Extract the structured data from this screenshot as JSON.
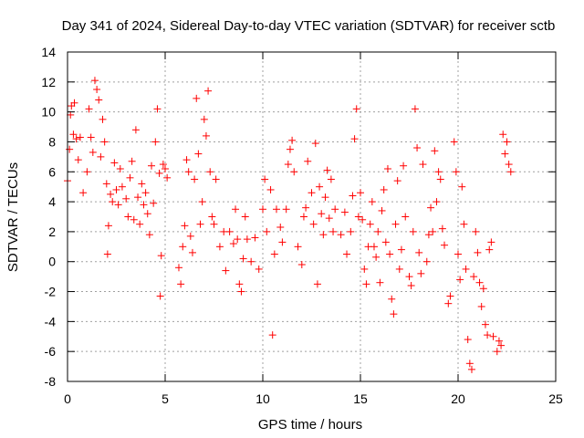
{
  "chart_data": {
    "type": "scatter",
    "title": "Day 341 of 2024, Sidereal Day-to-day VTEC variation (SDTVAR) for receiver sctb",
    "xlabel": "GPS time / hours",
    "ylabel": "SDTVAR / TECUs",
    "xlim": [
      0,
      25
    ],
    "ylim": [
      -8,
      14
    ],
    "xticks": [
      "0",
      "5",
      "10",
      "15",
      "20",
      "25"
    ],
    "yticks": [
      "-8",
      "-6",
      "-4",
      "-2",
      "0",
      "2",
      "4",
      "6",
      "8",
      "10",
      "12",
      "14"
    ],
    "grid": true,
    "marker": "+",
    "marker_color": "#ff0000",
    "series": [
      {
        "name": "SDTVAR",
        "points": [
          [
            0.0,
            5.4
          ],
          [
            0.1,
            7.5
          ],
          [
            0.15,
            9.8
          ],
          [
            0.2,
            10.4
          ],
          [
            0.3,
            8.5
          ],
          [
            0.35,
            10.6
          ],
          [
            0.45,
            8.2
          ],
          [
            0.55,
            6.8
          ],
          [
            0.65,
            8.3
          ],
          [
            0.8,
            4.6
          ],
          [
            1.0,
            6.0
          ],
          [
            1.1,
            10.2
          ],
          [
            1.2,
            8.3
          ],
          [
            1.3,
            7.3
          ],
          [
            1.4,
            12.1
          ],
          [
            1.5,
            11.5
          ],
          [
            1.6,
            10.8
          ],
          [
            1.7,
            7.0
          ],
          [
            1.8,
            9.5
          ],
          [
            1.9,
            8.0
          ],
          [
            2.0,
            5.2
          ],
          [
            2.05,
            0.5
          ],
          [
            2.1,
            2.4
          ],
          [
            2.2,
            4.5
          ],
          [
            2.3,
            4.0
          ],
          [
            2.4,
            6.6
          ],
          [
            2.5,
            4.8
          ],
          [
            2.6,
            3.8
          ],
          [
            2.7,
            6.2
          ],
          [
            2.8,
            5.0
          ],
          [
            3.0,
            4.2
          ],
          [
            3.1,
            3.0
          ],
          [
            3.2,
            5.6
          ],
          [
            3.3,
            6.7
          ],
          [
            3.4,
            2.8
          ],
          [
            3.5,
            8.8
          ],
          [
            3.6,
            4.3
          ],
          [
            3.7,
            2.5
          ],
          [
            3.8,
            5.2
          ],
          [
            3.9,
            3.8
          ],
          [
            4.0,
            4.6
          ],
          [
            4.1,
            3.2
          ],
          [
            4.2,
            1.8
          ],
          [
            4.3,
            6.4
          ],
          [
            4.4,
            3.9
          ],
          [
            4.5,
            8.0
          ],
          [
            4.6,
            10.2
          ],
          [
            4.7,
            5.9
          ],
          [
            4.75,
            -2.3
          ],
          [
            4.8,
            0.4
          ],
          [
            4.9,
            6.5
          ],
          [
            5.0,
            6.2
          ],
          [
            5.1,
            5.6
          ],
          [
            5.7,
            -0.4
          ],
          [
            5.8,
            -1.5
          ],
          [
            5.9,
            1.0
          ],
          [
            6.0,
            2.4
          ],
          [
            6.1,
            6.8
          ],
          [
            6.2,
            6.0
          ],
          [
            6.3,
            1.7
          ],
          [
            6.4,
            0.6
          ],
          [
            6.5,
            5.5
          ],
          [
            6.6,
            10.9
          ],
          [
            6.7,
            7.2
          ],
          [
            6.8,
            2.5
          ],
          [
            6.9,
            4.0
          ],
          [
            7.0,
            9.5
          ],
          [
            7.1,
            8.4
          ],
          [
            7.2,
            11.4
          ],
          [
            7.3,
            6.0
          ],
          [
            7.4,
            3.0
          ],
          [
            7.5,
            2.5
          ],
          [
            7.6,
            5.5
          ],
          [
            7.8,
            1.0
          ],
          [
            8.0,
            2.0
          ],
          [
            8.1,
            -0.6
          ],
          [
            8.3,
            2.0
          ],
          [
            8.5,
            1.2
          ],
          [
            8.6,
            3.5
          ],
          [
            8.7,
            1.5
          ],
          [
            8.8,
            -1.5
          ],
          [
            8.9,
            -2.0
          ],
          [
            9.0,
            0.2
          ],
          [
            9.1,
            3.0
          ],
          [
            9.2,
            1.5
          ],
          [
            9.4,
            0.0
          ],
          [
            9.6,
            1.6
          ],
          [
            9.8,
            -0.5
          ],
          [
            10.0,
            3.5
          ],
          [
            10.1,
            5.5
          ],
          [
            10.2,
            2.0
          ],
          [
            10.4,
            4.8
          ],
          [
            10.5,
            -4.9
          ],
          [
            10.6,
            0.5
          ],
          [
            10.7,
            3.5
          ],
          [
            10.9,
            2.3
          ],
          [
            11.0,
            1.3
          ],
          [
            11.2,
            3.5
          ],
          [
            11.3,
            6.5
          ],
          [
            11.4,
            7.5
          ],
          [
            11.5,
            8.1
          ],
          [
            11.6,
            6.0
          ],
          [
            11.8,
            1.0
          ],
          [
            12.0,
            -0.2
          ],
          [
            12.1,
            3.0
          ],
          [
            12.2,
            3.6
          ],
          [
            12.3,
            6.7
          ],
          [
            12.5,
            4.6
          ],
          [
            12.6,
            2.5
          ],
          [
            12.7,
            7.9
          ],
          [
            12.8,
            -1.5
          ],
          [
            12.9,
            5.0
          ],
          [
            13.0,
            3.2
          ],
          [
            13.1,
            1.8
          ],
          [
            13.2,
            4.3
          ],
          [
            13.3,
            6.1
          ],
          [
            13.4,
            2.9
          ],
          [
            13.5,
            5.5
          ],
          [
            13.6,
            2.0
          ],
          [
            13.7,
            3.5
          ],
          [
            14.0,
            1.8
          ],
          [
            14.2,
            3.3
          ],
          [
            14.3,
            0.5
          ],
          [
            14.5,
            2.0
          ],
          [
            14.6,
            4.4
          ],
          [
            14.7,
            8.2
          ],
          [
            14.8,
            10.2
          ],
          [
            14.9,
            3.0
          ],
          [
            15.0,
            4.6
          ],
          [
            15.1,
            2.8
          ],
          [
            15.2,
            -0.5
          ],
          [
            15.3,
            -1.5
          ],
          [
            15.4,
            1.0
          ],
          [
            15.5,
            2.5
          ],
          [
            15.6,
            4.0
          ],
          [
            15.7,
            1.0
          ],
          [
            15.8,
            0.3
          ],
          [
            15.9,
            2.0
          ],
          [
            16.0,
            -1.4
          ],
          [
            16.1,
            3.4
          ],
          [
            16.2,
            4.8
          ],
          [
            16.3,
            1.3
          ],
          [
            16.4,
            6.2
          ],
          [
            16.5,
            0.5
          ],
          [
            16.6,
            -2.5
          ],
          [
            16.7,
            -3.5
          ],
          [
            16.8,
            2.5
          ],
          [
            16.9,
            5.4
          ],
          [
            17.0,
            -0.5
          ],
          [
            17.1,
            0.8
          ],
          [
            17.2,
            6.4
          ],
          [
            17.3,
            3.0
          ],
          [
            17.5,
            -1.0
          ],
          [
            17.6,
            -1.6
          ],
          [
            17.7,
            2.0
          ],
          [
            17.8,
            10.2
          ],
          [
            17.9,
            7.6
          ],
          [
            18.0,
            0.6
          ],
          [
            18.1,
            -0.8
          ],
          [
            18.2,
            6.5
          ],
          [
            18.4,
            0.0
          ],
          [
            18.5,
            1.8
          ],
          [
            18.6,
            3.6
          ],
          [
            18.7,
            2.0
          ],
          [
            18.8,
            7.4
          ],
          [
            18.9,
            4.0
          ],
          [
            19.0,
            6.0
          ],
          [
            19.1,
            5.5
          ],
          [
            19.2,
            2.2
          ],
          [
            19.3,
            1.1
          ],
          [
            19.5,
            -2.8
          ],
          [
            19.6,
            -2.3
          ],
          [
            19.8,
            8.0
          ],
          [
            19.9,
            6.0
          ],
          [
            20.0,
            0.5
          ],
          [
            20.1,
            -1.2
          ],
          [
            20.2,
            5.0
          ],
          [
            20.3,
            2.5
          ],
          [
            20.4,
            -0.5
          ],
          [
            20.5,
            -5.2
          ],
          [
            20.6,
            -6.8
          ],
          [
            20.7,
            -7.2
          ],
          [
            20.8,
            -1.0
          ],
          [
            20.9,
            2.0
          ],
          [
            21.0,
            0.6
          ],
          [
            21.1,
            -1.4
          ],
          [
            21.2,
            -3.0
          ],
          [
            21.3,
            -1.8
          ],
          [
            21.4,
            -4.2
          ],
          [
            21.5,
            -4.9
          ],
          [
            21.6,
            0.8
          ],
          [
            21.7,
            1.3
          ],
          [
            21.8,
            -5.0
          ],
          [
            22.0,
            -6.0
          ],
          [
            22.1,
            -5.3
          ],
          [
            22.2,
            -5.6
          ],
          [
            22.3,
            8.5
          ],
          [
            22.4,
            7.2
          ],
          [
            22.5,
            8.0
          ],
          [
            22.6,
            6.5
          ],
          [
            22.7,
            6.0
          ]
        ]
      }
    ]
  }
}
